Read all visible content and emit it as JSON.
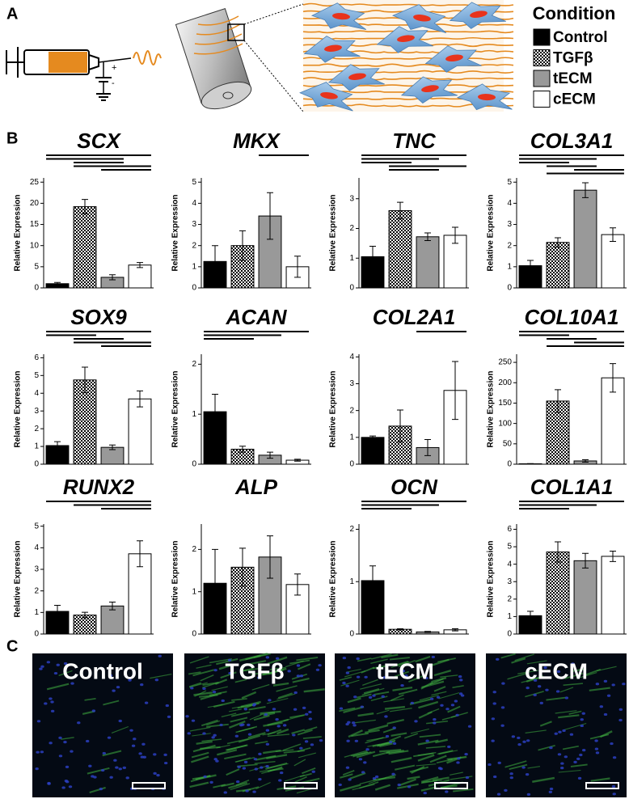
{
  "panel_labels": [
    "A",
    "B",
    "C"
  ],
  "schematic": {
    "plus": "+",
    "minus": "-"
  },
  "legend": {
    "title": "Condition",
    "entries": [
      {
        "name": "Control",
        "fill": "#000000"
      },
      {
        "name": "TGFβ",
        "fill": "checker"
      },
      {
        "name": "tECM",
        "fill": "#999999"
      },
      {
        "name": "cECM",
        "fill": "#ffffff"
      }
    ]
  },
  "chart_data": [
    {
      "type": "bar",
      "title": "SCX",
      "ylabel": "Relative Expression",
      "values": [
        1,
        19.2,
        2.5,
        5.4
      ],
      "errors": [
        0.3,
        1.7,
        0.6,
        0.6
      ],
      "ylim": [
        0,
        26
      ],
      "yticks": [
        0,
        5,
        10,
        15,
        20,
        25
      ],
      "significance": [
        [
          0,
          3
        ],
        [
          0,
          2
        ],
        [
          1,
          2
        ],
        [
          1,
          3
        ],
        [
          2,
          3
        ]
      ]
    },
    {
      "type": "bar",
      "title": "MKX",
      "ylabel": "Relative Expression",
      "values": [
        1.25,
        2,
        3.4,
        1
      ],
      "errors": [
        0.75,
        0.7,
        1.1,
        0.5
      ],
      "ylim": [
        0,
        5.2
      ],
      "yticks": [
        0,
        1,
        2,
        3,
        4,
        5
      ],
      "significance": [
        [
          2,
          3
        ]
      ]
    },
    {
      "type": "bar",
      "title": "TNC",
      "ylabel": "Relative Expression",
      "values": [
        1.05,
        2.6,
        1.72,
        1.77
      ],
      "errors": [
        0.35,
        0.28,
        0.13,
        0.27
      ],
      "ylim": [
        0,
        3.7
      ],
      "yticks": [
        0,
        1,
        2,
        3
      ],
      "significance": [
        [
          0,
          3
        ],
        [
          0,
          2
        ],
        [
          0,
          1
        ],
        [
          1,
          3
        ],
        [
          1,
          2
        ]
      ]
    },
    {
      "type": "bar",
      "title": "COL3A1",
      "ylabel": "Relative Expression",
      "values": [
        1.05,
        2.15,
        4.62,
        2.52
      ],
      "errors": [
        0.25,
        0.22,
        0.35,
        0.32
      ],
      "ylim": [
        0,
        5.2
      ],
      "yticks": [
        0,
        1,
        2,
        3,
        4,
        5
      ],
      "significance": [
        [
          0,
          3
        ],
        [
          0,
          2
        ],
        [
          0,
          1
        ],
        [
          1,
          2
        ],
        [
          2,
          3
        ],
        [
          1,
          3
        ]
      ]
    },
    {
      "type": "bar",
      "title": "SOX9",
      "ylabel": "Relative Expression",
      "values": [
        1.05,
        4.75,
        0.95,
        3.68
      ],
      "errors": [
        0.22,
        0.72,
        0.13,
        0.45
      ],
      "ylim": [
        0,
        6.2
      ],
      "yticks": [
        0,
        1,
        2,
        3,
        4,
        5,
        6
      ],
      "significance": [
        [
          0,
          3
        ],
        [
          0,
          1
        ],
        [
          1,
          2
        ],
        [
          1,
          3
        ],
        [
          2,
          3
        ]
      ]
    },
    {
      "type": "bar",
      "title": "ACAN",
      "ylabel": "Relative Expression",
      "values": [
        1.05,
        0.3,
        0.18,
        0.08
      ],
      "errors": [
        0.35,
        0.06,
        0.06,
        0.02
      ],
      "ylim": [
        0,
        2.2
      ],
      "yticks": [
        0,
        1,
        2
      ],
      "significance": [
        [
          0,
          3
        ],
        [
          0,
          2
        ],
        [
          0,
          1
        ]
      ]
    },
    {
      "type": "bar",
      "title": "COL2A1",
      "ylabel": "Relative Expression",
      "values": [
        1,
        1.42,
        0.62,
        2.75
      ],
      "errors": [
        0.05,
        0.6,
        0.3,
        1.08
      ],
      "ylim": [
        0,
        4.1
      ],
      "yticks": [
        0,
        1,
        2,
        3,
        4
      ],
      "significance": [
        [
          2,
          3
        ]
      ]
    },
    {
      "type": "bar",
      "title": "COL10A1",
      "ylabel": "Relative Expression",
      "values": [
        1,
        155,
        8,
        212
      ],
      "errors": [
        0.5,
        28,
        3,
        35
      ],
      "ylim": [
        0,
        270
      ],
      "yticks": [
        0,
        50,
        100,
        150,
        200,
        250
      ],
      "significance": [
        [
          0,
          3
        ],
        [
          0,
          1
        ],
        [
          1,
          2
        ],
        [
          2,
          3
        ],
        [
          1,
          3
        ]
      ]
    },
    {
      "type": "bar",
      "title": "RUNX2",
      "ylabel": "Relative Expression",
      "values": [
        1.05,
        0.88,
        1.3,
        3.72
      ],
      "errors": [
        0.28,
        0.13,
        0.18,
        0.6
      ],
      "ylim": [
        0,
        5.1
      ],
      "yticks": [
        0,
        1,
        2,
        3,
        4,
        5
      ],
      "significance": [
        [
          0,
          3
        ],
        [
          1,
          3
        ],
        [
          2,
          3
        ]
      ]
    },
    {
      "type": "bar",
      "title": "ALP",
      "ylabel": "Relative Expression",
      "values": [
        1.2,
        1.58,
        1.82,
        1.17
      ],
      "errors": [
        0.8,
        0.45,
        0.5,
        0.25
      ],
      "ylim": [
        0,
        2.6
      ],
      "yticks": [
        0,
        1,
        2
      ],
      "significance": []
    },
    {
      "type": "bar",
      "title": "OCN",
      "ylabel": "Relative Expression",
      "values": [
        1.02,
        0.09,
        0.04,
        0.08
      ],
      "errors": [
        0.28,
        0.01,
        0.01,
        0.02
      ],
      "ylim": [
        0,
        2.1
      ],
      "yticks": [
        0,
        1,
        2
      ],
      "significance": [
        [
          0,
          3
        ],
        [
          0,
          2
        ],
        [
          0,
          1
        ]
      ]
    },
    {
      "type": "bar",
      "title": "COL1A1",
      "ylabel": "Relative Expression",
      "values": [
        1.05,
        4.7,
        4.2,
        4.45
      ],
      "errors": [
        0.25,
        0.58,
        0.42,
        0.3
      ],
      "ylim": [
        0,
        6.3
      ],
      "yticks": [
        0,
        1,
        2,
        3,
        4,
        5,
        6
      ],
      "significance": [
        [
          0,
          3
        ],
        [
          0,
          2
        ],
        [
          0,
          1
        ]
      ]
    }
  ],
  "micrographs": {
    "labels": [
      "Control",
      "TGFβ",
      "tECM",
      "cECM"
    ]
  }
}
